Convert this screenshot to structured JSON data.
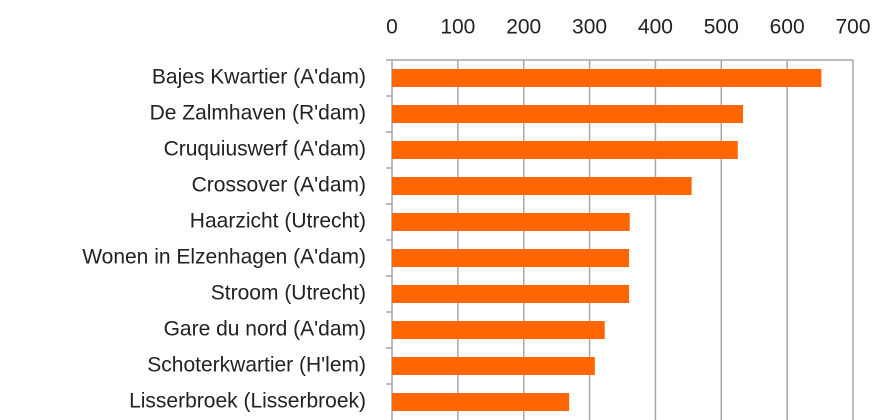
{
  "chart_data": {
    "type": "bar",
    "orientation": "horizontal",
    "categories": [
      "Bajes Kwartier (A'dam)",
      "De Zalmhaven (R'dam)",
      "Cruquiuswerf (A'dam)",
      "Crossover (A'dam)",
      "Haarzicht (Utrecht)",
      "Wonen in Elzenhagen (A'dam)",
      "Stroom (Utrecht)",
      "Gare du nord (A'dam)",
      "Schoterkwartier (H'lem)",
      "Lisserbroek (Lisserbroek)"
    ],
    "values": [
      652,
      533,
      525,
      455,
      361,
      360,
      360,
      323,
      308,
      269
    ],
    "color": "#ff6600",
    "xlim": [
      0,
      700
    ],
    "xticks": [
      0,
      100,
      200,
      300,
      400,
      500,
      600,
      700
    ],
    "grid": true
  }
}
